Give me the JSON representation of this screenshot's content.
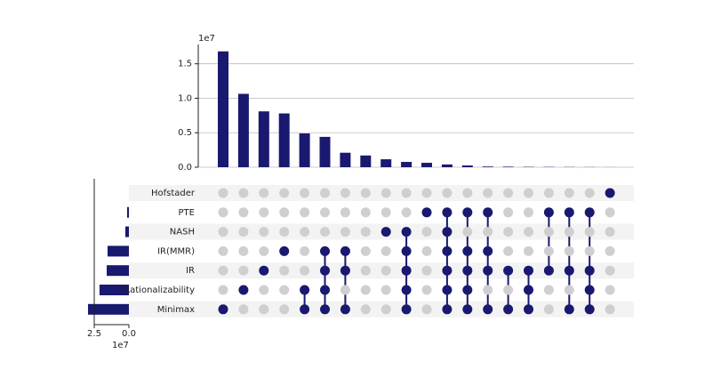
{
  "chart_data": {
    "type": "upset",
    "offset_label": "1e7",
    "set_offset_label": "1e7",
    "sets": [
      "Hofstader",
      "PTE",
      "NASH",
      "IR(MMR)",
      "IR",
      "Rationalizability",
      "Minimax"
    ],
    "set_sizes": [
      0,
      0.13,
      0.26,
      1.54,
      1.6,
      2.12,
      2.95
    ],
    "set_xlim": [
      2.5,
      0
    ],
    "set_xticks": [
      {
        "value": 2.5,
        "label": "2.5"
      },
      {
        "value": 0,
        "label": "0.0"
      }
    ],
    "values": [
      1.68,
      1.064,
      0.81,
      0.78,
      0.49,
      0.44,
      0.21,
      0.17,
      0.115,
      0.077,
      0.064,
      0.04,
      0.025,
      0.01,
      0.008,
      0.005,
      0.004,
      0.003,
      0.002,
      0.001
    ],
    "ylim": [
      0,
      1.78
    ],
    "yticks": [
      {
        "value": 0,
        "label": "0.0"
      },
      0.5,
      {
        "value": 1,
        "label": "1.0"
      },
      1.5
    ],
    "grid": true,
    "color": "#191970",
    "membership": [
      [
        0,
        0,
        0,
        0,
        0,
        0,
        1
      ],
      [
        0,
        0,
        0,
        0,
        0,
        1,
        0
      ],
      [
        0,
        0,
        0,
        0,
        1,
        0,
        0
      ],
      [
        0,
        0,
        0,
        1,
        0,
        0,
        0
      ],
      [
        0,
        0,
        0,
        0,
        0,
        1,
        1
      ],
      [
        0,
        0,
        0,
        1,
        1,
        1,
        1
      ],
      [
        0,
        0,
        0,
        1,
        1,
        0,
        1
      ],
      [
        0,
        0,
        0,
        0,
        0,
        0,
        0
      ],
      [
        0,
        0,
        1,
        0,
        0,
        0,
        0
      ],
      [
        0,
        0,
        1,
        1,
        1,
        1,
        1
      ],
      [
        0,
        1,
        0,
        0,
        0,
        0,
        0
      ],
      [
        0,
        1,
        1,
        1,
        1,
        1,
        1
      ],
      [
        0,
        1,
        0,
        1,
        1,
        1,
        1
      ],
      [
        0,
        1,
        0,
        1,
        1,
        0,
        1
      ],
      [
        0,
        0,
        0,
        0,
        1,
        0,
        1
      ],
      [
        0,
        0,
        0,
        0,
        1,
        1,
        1
      ],
      [
        0,
        1,
        0,
        0,
        1,
        0,
        0
      ],
      [
        0,
        1,
        0,
        0,
        1,
        0,
        1
      ],
      [
        0,
        1,
        0,
        0,
        1,
        1,
        1
      ],
      [
        1,
        0,
        0,
        0,
        0,
        0,
        0
      ]
    ]
  }
}
